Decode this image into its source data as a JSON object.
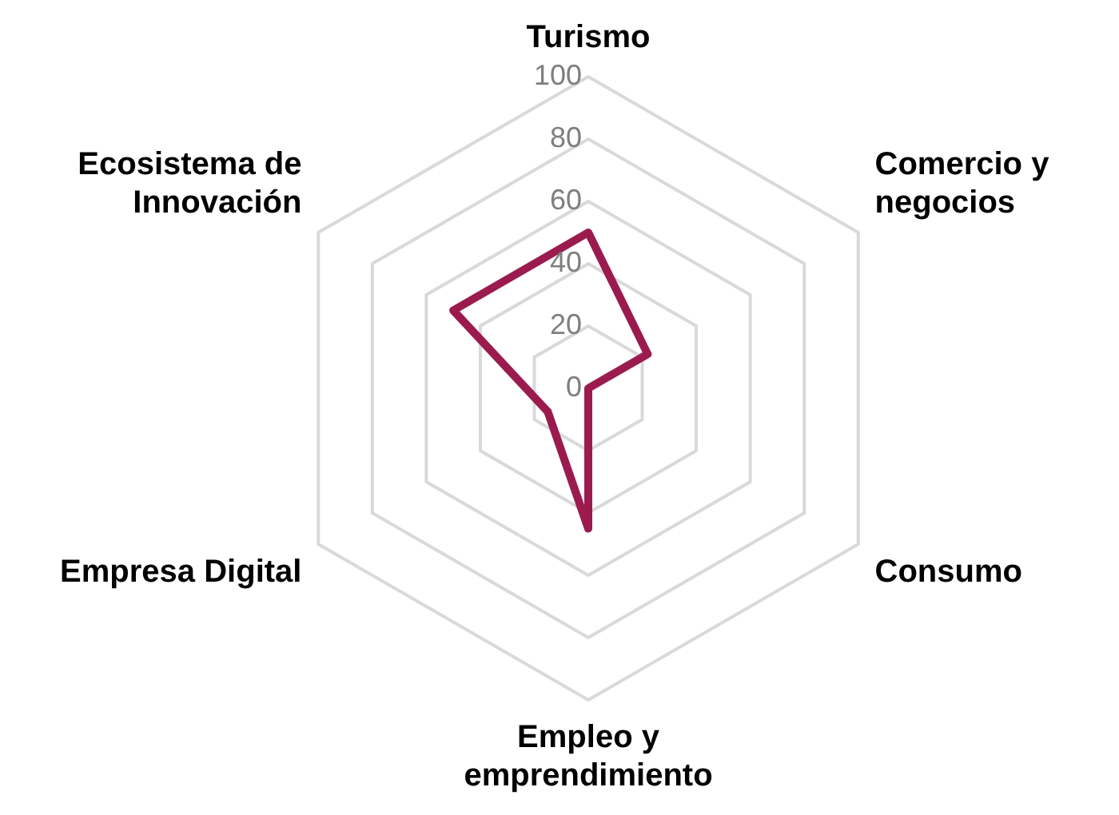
{
  "chart_data": {
    "type": "radar",
    "categories": [
      "Turismo",
      "Comercio y negocios",
      "Consumo",
      "Empleo y emprendimiento",
      "Empresa Digital",
      "Ecosistema de Innovación"
    ],
    "series": [
      {
        "color": "#9b1b4f",
        "values": [
          50,
          22,
          0,
          45,
          15,
          50
        ]
      }
    ],
    "ylim": [
      0,
      100
    ],
    "yticks": [
      0,
      20,
      40,
      60,
      80,
      100
    ],
    "grid": true,
    "legend": false,
    "marker": "none"
  }
}
